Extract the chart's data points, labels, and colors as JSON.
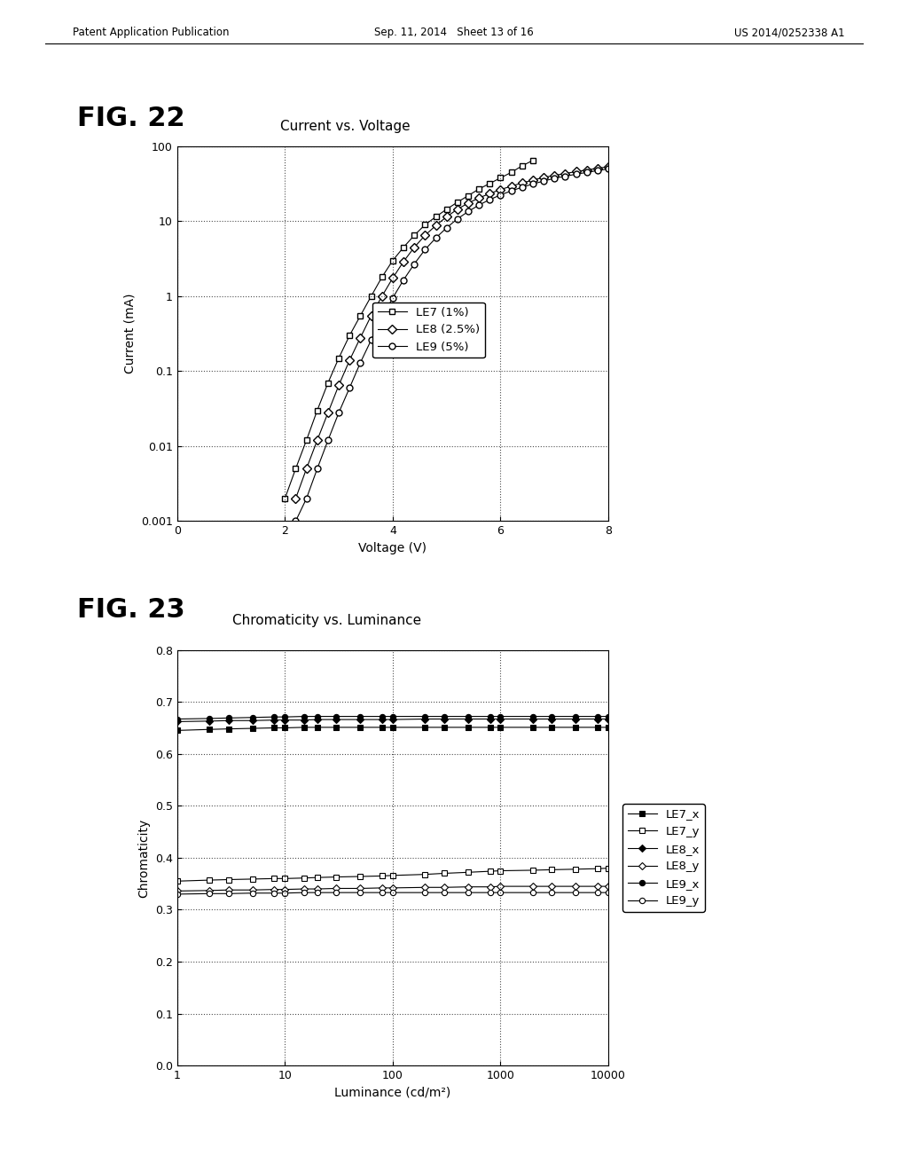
{
  "fig22_title": "Current vs. Voltage",
  "fig22_xlabel": "Voltage (V)",
  "fig22_ylabel": "Current (mA)",
  "fig22_xlim": [
    0,
    8
  ],
  "fig22_ylim_log": [
    0.001,
    100
  ],
  "fig22_xticks": [
    0,
    2,
    4,
    6,
    8
  ],
  "fig23_title": "Chromaticity vs. Luminance",
  "fig23_xlabel": "Luminance (cd/m²)",
  "fig23_ylabel": "Chromaticity",
  "fig23_xlim_log": [
    1,
    10000
  ],
  "fig23_ylim": [
    0,
    0.8
  ],
  "fig23_yticks": [
    0,
    0.1,
    0.2,
    0.3,
    0.4,
    0.5,
    0.6,
    0.7,
    0.8
  ],
  "header_left": "Patent Application Publication",
  "header_center": "Sep. 11, 2014   Sheet 13 of 16",
  "header_right": "US 2014/0252338 A1",
  "fig22_label": "FIG. 22",
  "fig23_label": "FIG. 23",
  "LE7_V": [
    2.0,
    2.2,
    2.4,
    2.6,
    2.8,
    3.0,
    3.2,
    3.4,
    3.6,
    3.8,
    4.0,
    4.2,
    4.4,
    4.6,
    4.8,
    5.0,
    5.2,
    5.4,
    5.6,
    5.8,
    6.0,
    6.2,
    6.4,
    6.6
  ],
  "LE7_I": [
    0.002,
    0.005,
    0.012,
    0.03,
    0.07,
    0.15,
    0.3,
    0.55,
    1.0,
    1.8,
    3.0,
    4.5,
    6.5,
    9.0,
    11.5,
    14.5,
    18.0,
    22.0,
    27.0,
    32.0,
    38.0,
    45.0,
    55.0,
    65.0
  ],
  "LE8_V": [
    2.2,
    2.4,
    2.6,
    2.8,
    3.0,
    3.2,
    3.4,
    3.6,
    3.8,
    4.0,
    4.2,
    4.4,
    4.6,
    4.8,
    5.0,
    5.2,
    5.4,
    5.6,
    5.8,
    6.0,
    6.2,
    6.4,
    6.6,
    6.8,
    7.0,
    7.2,
    7.4,
    7.6,
    7.8,
    8.0
  ],
  "LE8_I": [
    0.002,
    0.005,
    0.012,
    0.028,
    0.065,
    0.14,
    0.28,
    0.55,
    1.0,
    1.75,
    2.9,
    4.5,
    6.5,
    8.8,
    11.5,
    14.5,
    17.5,
    20.5,
    23.5,
    26.5,
    29.5,
    32.5,
    35.5,
    38.5,
    41.0,
    43.5,
    46.0,
    48.5,
    51.0,
    53.5
  ],
  "LE9_V": [
    2.2,
    2.4,
    2.6,
    2.8,
    3.0,
    3.2,
    3.4,
    3.6,
    3.8,
    4.0,
    4.2,
    4.4,
    4.6,
    4.8,
    5.0,
    5.2,
    5.4,
    5.6,
    5.8,
    6.0,
    6.2,
    6.4,
    6.6,
    6.8,
    7.0,
    7.2,
    7.4,
    7.6,
    7.8,
    8.0
  ],
  "LE9_I": [
    0.001,
    0.002,
    0.005,
    0.012,
    0.028,
    0.06,
    0.13,
    0.26,
    0.52,
    0.95,
    1.65,
    2.7,
    4.2,
    6.0,
    8.2,
    10.8,
    13.5,
    16.5,
    19.5,
    22.5,
    25.5,
    28.5,
    31.5,
    34.5,
    37.5,
    40.0,
    42.5,
    45.0,
    47.5,
    50.0
  ],
  "LE7x_L": [
    1,
    2,
    3,
    5,
    8,
    10,
    15,
    20,
    30,
    50,
    80,
    100,
    200,
    300,
    500,
    800,
    1000,
    2000,
    3000,
    5000,
    8000,
    10000
  ],
  "LE7x_C": [
    0.645,
    0.647,
    0.648,
    0.649,
    0.65,
    0.65,
    0.651,
    0.651,
    0.651,
    0.651,
    0.651,
    0.651,
    0.651,
    0.651,
    0.651,
    0.651,
    0.651,
    0.651,
    0.651,
    0.651,
    0.651,
    0.651
  ],
  "LE7y_L": [
    1,
    2,
    3,
    5,
    8,
    10,
    15,
    20,
    30,
    50,
    80,
    100,
    200,
    300,
    500,
    800,
    1000,
    2000,
    3000,
    5000,
    8000,
    10000
  ],
  "LE7y_C": [
    0.355,
    0.357,
    0.358,
    0.359,
    0.36,
    0.36,
    0.361,
    0.362,
    0.363,
    0.364,
    0.365,
    0.366,
    0.368,
    0.37,
    0.372,
    0.374,
    0.375,
    0.376,
    0.377,
    0.378,
    0.379,
    0.38
  ],
  "LE8x_L": [
    1,
    2,
    3,
    5,
    8,
    10,
    15,
    20,
    30,
    50,
    80,
    100,
    200,
    300,
    500,
    800,
    1000,
    2000,
    3000,
    5000,
    8000,
    10000
  ],
  "LE8x_C": [
    0.662,
    0.663,
    0.664,
    0.664,
    0.665,
    0.665,
    0.665,
    0.666,
    0.666,
    0.666,
    0.666,
    0.666,
    0.667,
    0.667,
    0.667,
    0.667,
    0.667,
    0.667,
    0.667,
    0.667,
    0.667,
    0.667
  ],
  "LE8y_L": [
    1,
    2,
    3,
    5,
    8,
    10,
    15,
    20,
    30,
    50,
    80,
    100,
    200,
    300,
    500,
    800,
    1000,
    2000,
    3000,
    5000,
    8000,
    10000
  ],
  "LE8y_C": [
    0.336,
    0.337,
    0.338,
    0.338,
    0.339,
    0.339,
    0.34,
    0.34,
    0.341,
    0.341,
    0.342,
    0.342,
    0.343,
    0.343,
    0.344,
    0.344,
    0.345,
    0.345,
    0.345,
    0.345,
    0.345,
    0.345
  ],
  "LE9x_L": [
    1,
    2,
    3,
    5,
    8,
    10,
    15,
    20,
    30,
    50,
    80,
    100,
    200,
    300,
    500,
    800,
    1000,
    2000,
    3000,
    5000,
    8000,
    10000
  ],
  "LE9x_C": [
    0.667,
    0.668,
    0.669,
    0.67,
    0.671,
    0.671,
    0.672,
    0.672,
    0.672,
    0.672,
    0.672,
    0.672,
    0.672,
    0.672,
    0.672,
    0.672,
    0.672,
    0.672,
    0.672,
    0.672,
    0.672,
    0.672
  ],
  "LE9y_L": [
    1,
    2,
    3,
    5,
    8,
    10,
    15,
    20,
    30,
    50,
    80,
    100,
    200,
    300,
    500,
    800,
    1000,
    2000,
    3000,
    5000,
    8000,
    10000
  ],
  "LE9y_C": [
    0.33,
    0.331,
    0.331,
    0.332,
    0.332,
    0.332,
    0.333,
    0.333,
    0.333,
    0.333,
    0.333,
    0.333,
    0.333,
    0.333,
    0.333,
    0.333,
    0.333,
    0.333,
    0.333,
    0.333,
    0.333,
    0.333
  ],
  "background": "#ffffff",
  "line_color": "#000000"
}
